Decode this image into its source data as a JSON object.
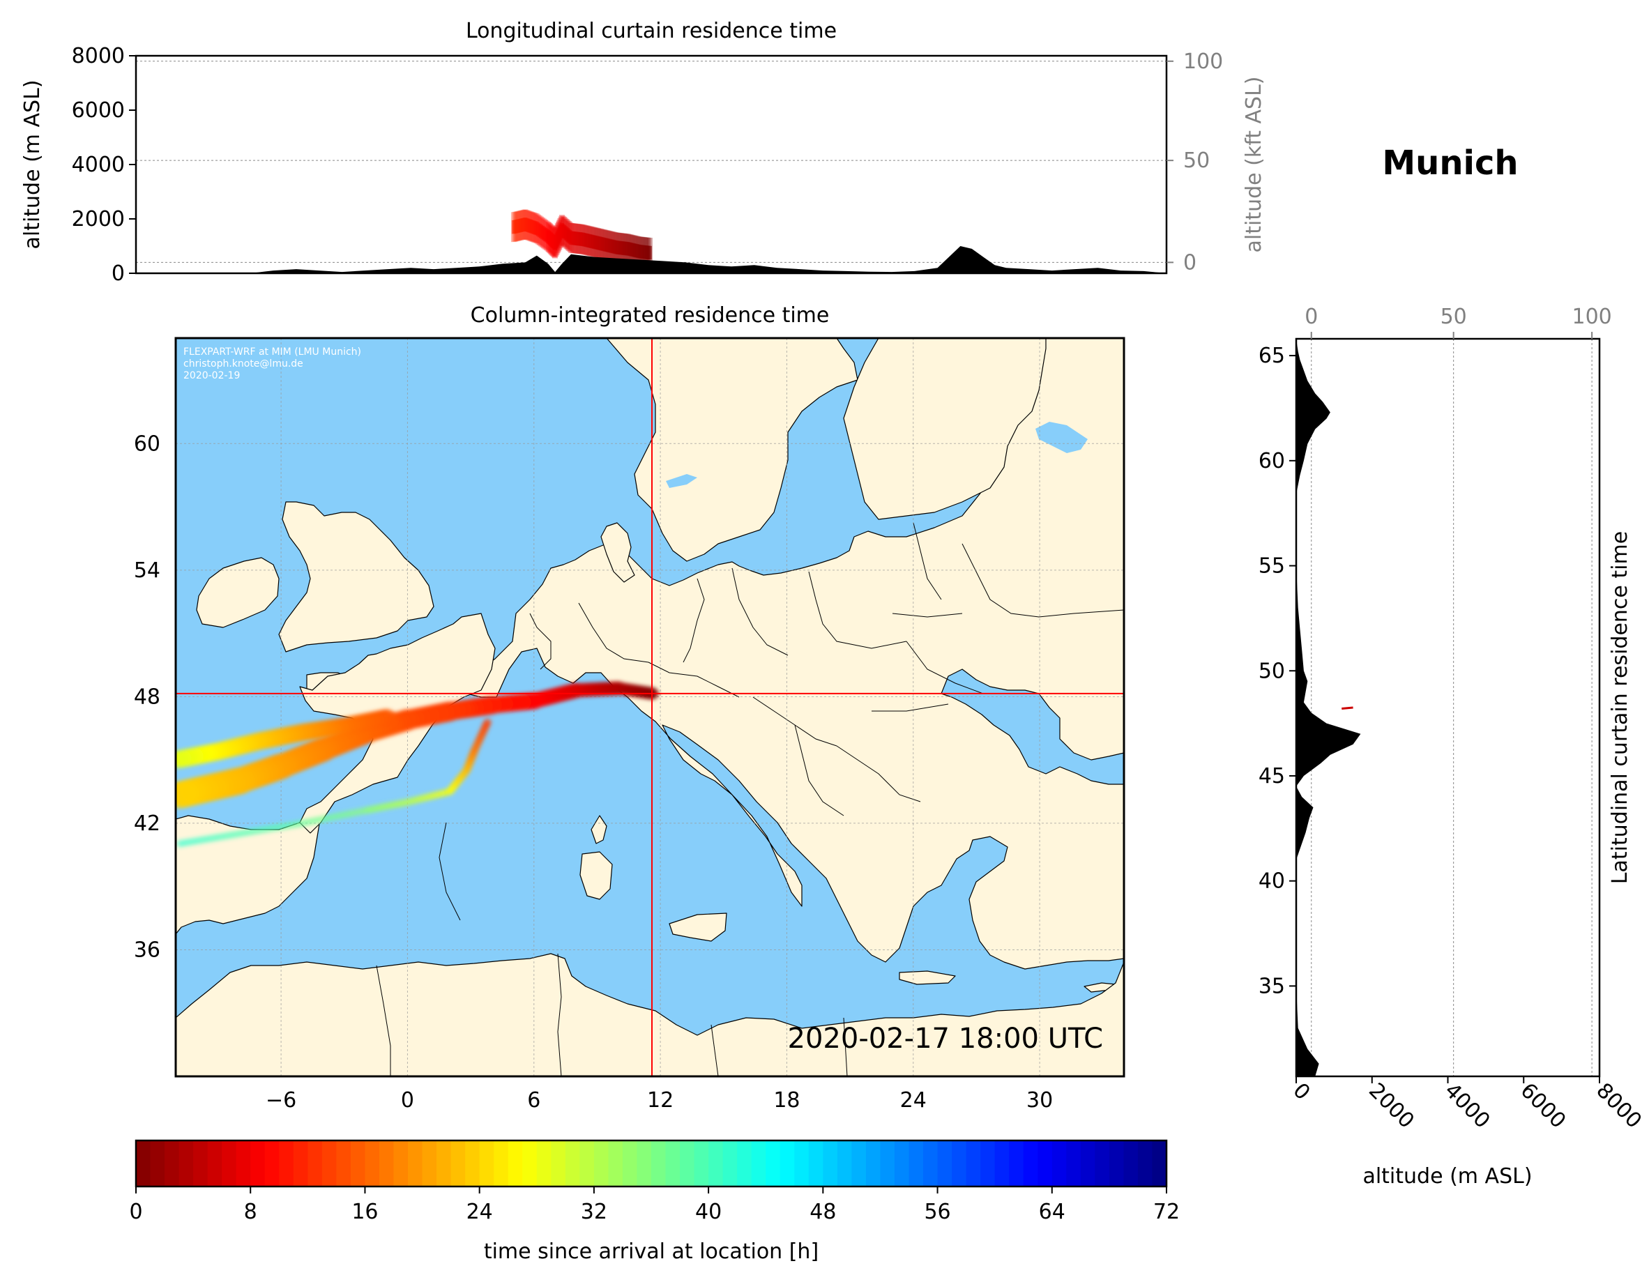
{
  "colors": {
    "ocean": "#87CEFA",
    "land": "#FFF6DC",
    "border": "#000000",
    "crosshair": "#ff0000",
    "secondary_axis": "#808080",
    "terrain": "#000000"
  },
  "location": {
    "name": "Munich",
    "lon": 11.6,
    "lat": 48.15
  },
  "credits": {
    "line1": "FLEXPART-WRF at MIM (LMU Munich)",
    "line2": "christoph.knote@lmu.de",
    "line3": "2020-02-19"
  },
  "timestamp": "2020-02-17 18:00 UTC",
  "chart_data": [
    {
      "id": "longitudinal",
      "type": "area",
      "title": "Longitudinal curtain residence time",
      "xlabel": "",
      "ylabel": "altitude (m ASL)",
      "ylabel2": "altitude (kft ASL)",
      "xlim": [
        -11,
        34
      ],
      "ylim": [
        0,
        8000
      ],
      "yticks": [
        0,
        2000,
        4000,
        6000,
        8000
      ],
      "yticks2": [
        0,
        50,
        100
      ],
      "grid": true,
      "terrain": {
        "name": "terrain",
        "x": [
          -11,
          -6,
          -5,
          -4,
          -3,
          -2,
          0,
          1,
          2,
          3,
          4,
          5,
          6,
          6.5,
          7,
          7.3,
          7.6,
          8,
          9,
          10,
          11,
          12,
          13,
          14,
          15,
          16,
          17,
          18,
          19,
          20,
          21,
          22,
          23,
          24,
          24.5,
          25,
          25.5,
          26,
          26.5,
          27,
          28,
          29,
          30,
          31,
          32,
          33,
          34
        ],
        "y": [
          0,
          0,
          100,
          150,
          100,
          50,
          150,
          200,
          150,
          200,
          250,
          350,
          400,
          650,
          350,
          50,
          350,
          700,
          600,
          550,
          500,
          450,
          400,
          300,
          250,
          300,
          200,
          150,
          100,
          80,
          60,
          50,
          80,
          200,
          600,
          1000,
          900,
          600,
          300,
          200,
          150,
          100,
          150,
          200,
          100,
          80,
          0
        ]
      },
      "plume": {
        "name": "residence time",
        "x": [
          5.5,
          6,
          6.5,
          7,
          7.3,
          7.6,
          8,
          8.5,
          9,
          9.5,
          10,
          10.5,
          11,
          11.5
        ],
        "y": [
          1700,
          1800,
          1650,
          1350,
          1100,
          1600,
          1300,
          1250,
          1150,
          1050,
          950,
          900,
          800,
          750
        ]
      }
    },
    {
      "id": "column",
      "type": "heatmap",
      "title": "Column-integrated residence time",
      "xlabel": "",
      "ylabel": "",
      "xlim": [
        -11,
        34
      ],
      "ylim": [
        30,
        65
      ],
      "xticks": [
        -6,
        0,
        6,
        12,
        18,
        24,
        30
      ],
      "yticks": [
        36,
        42,
        48,
        54,
        60
      ],
      "grid": true,
      "plume_branches": [
        {
          "name": "main",
          "points": [
            [
              11.6,
              48.15
            ],
            [
              10,
              48.4
            ],
            [
              8,
              48.3
            ],
            [
              6,
              47.8
            ],
            [
              4,
              47.6
            ],
            [
              2,
              47.3
            ],
            [
              0,
              46.9
            ],
            [
              -2,
              46.3
            ],
            [
              -4,
              45.5
            ],
            [
              -6,
              44.7
            ],
            [
              -8,
              44.0
            ],
            [
              -11,
              43.3
            ]
          ],
          "hours": [
            0,
            3,
            6,
            9,
            11,
            13,
            14,
            16,
            18,
            20,
            22,
            24
          ]
        },
        {
          "name": "northern",
          "points": [
            [
              -1,
              47.0
            ],
            [
              -3,
              46.6
            ],
            [
              -5,
              46.3
            ],
            [
              -7,
              45.9
            ],
            [
              -9,
              45.4
            ],
            [
              -11,
              45.0
            ]
          ],
          "hours": [
            15,
            17,
            20,
            23,
            26,
            29
          ]
        },
        {
          "name": "southern",
          "points": [
            [
              3.8,
              46.8
            ],
            [
              3.2,
              45.5
            ],
            [
              2.8,
              44.5
            ],
            [
              2,
              43.5
            ],
            [
              0,
              43.0
            ],
            [
              -2,
              42.6
            ],
            [
              -5,
              42.0
            ],
            [
              -8,
              41.5
            ],
            [
              -11,
              41.0
            ]
          ],
          "hours": [
            13,
            17,
            22,
            27,
            32,
            35,
            38,
            40,
            42
          ]
        }
      ]
    },
    {
      "id": "latitudinal",
      "type": "area",
      "title": "Latitudinal curtain residence time",
      "xlabel": "altitude (m ASL)",
      "xlabel2": "",
      "ylabel": "",
      "xlim": [
        0,
        8000
      ],
      "ylim": [
        30.7,
        65.8
      ],
      "xticks": [
        0,
        2000,
        4000,
        6000,
        8000
      ],
      "xticks2": [
        0,
        50,
        100
      ],
      "yticks": [
        35,
        40,
        45,
        50,
        55,
        60,
        65
      ],
      "grid": true,
      "terrain": {
        "name": "terrain",
        "lat": [
          30.7,
          31.3,
          32.0,
          33.0,
          35,
          38,
          41,
          42.3,
          43,
          43.5,
          44.0,
          44.5,
          45.0,
          45.6,
          46.0,
          46.5,
          47.0,
          47.5,
          48.0,
          48.5,
          49.0,
          49.5,
          50.0,
          51.0,
          52.0,
          53.0,
          55,
          57,
          58.4,
          59.3,
          60.0,
          60.8,
          61.5,
          62.0,
          62.3,
          62.8,
          63.2,
          63.8,
          64.3,
          64.8,
          65.2,
          65.8
        ],
        "alt": [
          500,
          600,
          300,
          50,
          0,
          0,
          0,
          250,
          350,
          450,
          150,
          0,
          200,
          650,
          900,
          1500,
          1700,
          800,
          400,
          200,
          250,
          300,
          200,
          150,
          100,
          50,
          0,
          0,
          0,
          100,
          200,
          300,
          500,
          800,
          900,
          700,
          500,
          300,
          200,
          100,
          50,
          0
        ]
      },
      "plume": {
        "name": "residence time",
        "lat": [
          48.2,
          48.25
        ],
        "alt": [
          1200,
          1500
        ]
      }
    },
    {
      "id": "colorbar",
      "type": "colorbar",
      "xlabel": "time since arrival at location [h]",
      "range": [
        0,
        72
      ],
      "ticks": [
        0,
        8,
        16,
        24,
        32,
        40,
        48,
        56,
        64,
        72
      ],
      "colormap": "jet_r"
    }
  ]
}
